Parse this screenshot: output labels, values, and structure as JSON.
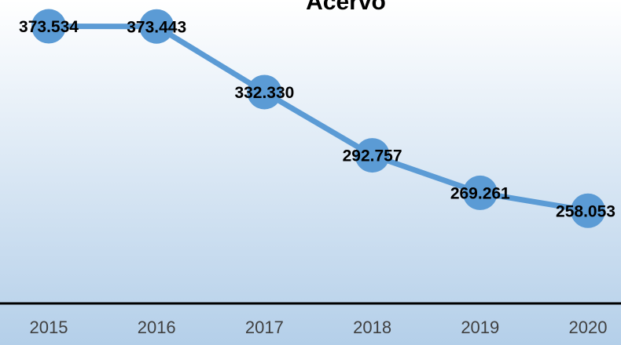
{
  "chart_data": {
    "type": "line",
    "title": "Acervo",
    "categories": [
      "2015",
      "2016",
      "2017",
      "2018",
      "2019",
      "2020"
    ],
    "series": [
      {
        "name": "Acervo",
        "color": "#5b9bd5",
        "values": [
          373534,
          373443,
          332330,
          292757,
          269261,
          258053
        ],
        "value_labels": [
          "373.534",
          "373.443",
          "332.330",
          "292.757",
          "269.261",
          "258.053"
        ]
      }
    ],
    "ylim": [
      200000,
      390000
    ]
  }
}
